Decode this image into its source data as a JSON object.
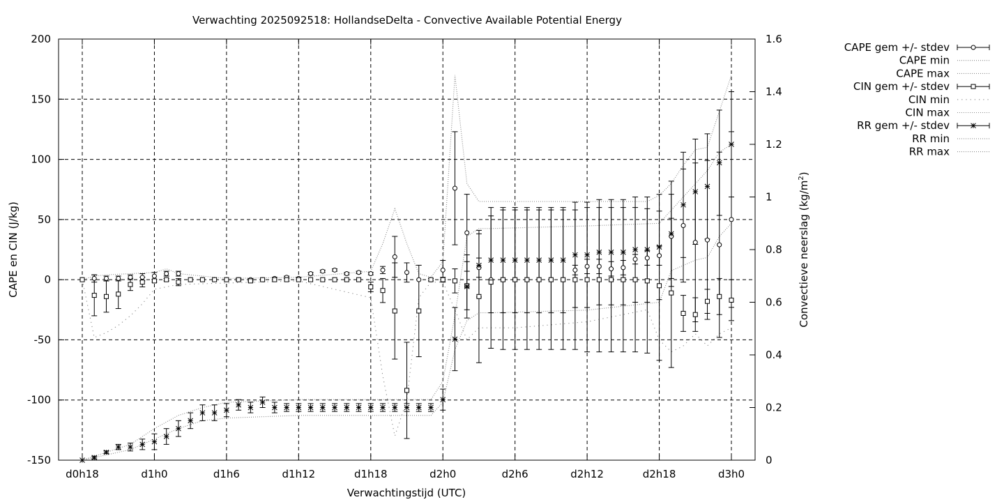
{
  "chart_data": {
    "type": "line",
    "title": "Verwachting 2025092518: HollandseDelta - Convective Available Potential Energy",
    "xlabel": "Verwachtingstijd (UTC)",
    "ylabel": "CAPE en CIN (J/kg)",
    "y2label": "Convectieve neerslag (kg/m²)",
    "y2label_main": "Convectieve neerslag (kg/m",
    "y2label_sup": "2",
    "y2label_close": ")",
    "xlim": [
      0,
      54
    ],
    "ylim": [
      -150,
      200
    ],
    "y2lim": [
      0,
      1.6
    ],
    "grid": true,
    "legend_position": "outside-right",
    "x_ticks": [
      {
        "v": 0,
        "label": "d0h18"
      },
      {
        "v": 6,
        "label": "d1h0"
      },
      {
        "v": 12,
        "label": "d1h6"
      },
      {
        "v": 18,
        "label": "d1h12"
      },
      {
        "v": 24,
        "label": "d1h18"
      },
      {
        "v": 30,
        "label": "d2h0"
      },
      {
        "v": 36,
        "label": "d2h6"
      },
      {
        "v": 42,
        "label": "d2h12"
      },
      {
        "v": 48,
        "label": "d2h18"
      },
      {
        "v": 54,
        "label": "d3h0"
      }
    ],
    "y_ticks": [
      {
        "v": -150,
        "label": "-150"
      },
      {
        "v": -100,
        "label": "-100"
      },
      {
        "v": -50,
        "label": "-50"
      },
      {
        "v": 0,
        "label": "0"
      },
      {
        "v": 50,
        "label": "50"
      },
      {
        "v": 100,
        "label": "100"
      },
      {
        "v": 150,
        "label": "150"
      },
      {
        "v": 200,
        "label": "200"
      }
    ],
    "y2_ticks": [
      {
        "v": 0,
        "label": "0"
      },
      {
        "v": 0.2,
        "label": "0.2"
      },
      {
        "v": 0.4,
        "label": "0.4"
      },
      {
        "v": 0.6,
        "label": "0.6"
      },
      {
        "v": 0.8,
        "label": "0.8"
      },
      {
        "v": 1.0,
        "label": "1"
      },
      {
        "v": 1.2,
        "label": "1.2"
      },
      {
        "v": 1.4,
        "label": "1.4"
      },
      {
        "v": 1.6,
        "label": "1.6"
      }
    ],
    "legend": [
      {
        "label": "CAPE gem +/- stdev",
        "style": "errorbar",
        "marker": "circle"
      },
      {
        "label": "CAPE min",
        "style": "dotted"
      },
      {
        "label": "CAPE max",
        "style": "dotted"
      },
      {
        "label": "CIN gem +/- stdev",
        "style": "errorbar",
        "marker": "square"
      },
      {
        "label": "CIN min",
        "style": "dotted-sparse"
      },
      {
        "label": "CIN max",
        "style": "dotted"
      },
      {
        "label": "RR gem +/- stdev",
        "style": "errorbar",
        "marker": "star"
      },
      {
        "label": "RR min",
        "style": "dotted"
      },
      {
        "label": "RR max",
        "style": "dotted"
      }
    ],
    "series": [
      {
        "key": "cape",
        "axis": "y",
        "marker": "circle",
        "errorbars": true,
        "x": [
          0,
          1,
          2,
          3,
          4,
          5,
          6,
          7,
          8,
          9,
          10,
          11,
          12,
          13,
          14,
          15,
          16,
          17,
          18,
          19,
          20,
          21,
          22,
          23,
          24,
          25,
          26,
          27,
          28,
          29,
          30,
          31,
          32,
          33,
          34,
          35,
          36,
          37,
          38,
          39,
          40,
          41,
          42,
          43,
          44,
          45,
          46,
          47,
          48,
          49,
          50,
          51,
          52,
          53,
          54
        ],
        "mean": [
          0,
          1,
          1,
          1,
          2,
          2,
          3,
          5,
          5,
          0,
          0,
          0,
          0,
          0,
          0,
          0,
          1,
          2,
          1,
          5,
          7,
          8,
          5,
          6,
          5,
          8,
          19,
          6,
          0,
          0,
          8,
          76,
          39,
          10,
          0,
          0,
          0,
          0,
          0,
          0,
          0,
          8,
          11,
          11,
          9,
          10,
          17,
          18,
          20,
          36,
          45,
          31,
          33,
          29,
          50
        ],
        "err": [
          0,
          3,
          2,
          2,
          2,
          3,
          3,
          2,
          2,
          0,
          0,
          0,
          0,
          1,
          1,
          0,
          1,
          1,
          1,
          1,
          1,
          1,
          1,
          1,
          1,
          3,
          17,
          8,
          0,
          0,
          8,
          47,
          32,
          8,
          0,
          0,
          0,
          0,
          0,
          0,
          0,
          4,
          6,
          6,
          6,
          6,
          4,
          6,
          8,
          35,
          47,
          66,
          66,
          77,
          73
        ]
      },
      {
        "key": "cin",
        "axis": "y",
        "marker": "square",
        "errorbars": true,
        "x": [
          0,
          1,
          2,
          3,
          4,
          5,
          6,
          7,
          8,
          9,
          10,
          11,
          12,
          13,
          14,
          15,
          16,
          17,
          18,
          19,
          20,
          21,
          22,
          23,
          24,
          25,
          26,
          27,
          28,
          29,
          30,
          31,
          32,
          33,
          34,
          35,
          36,
          37,
          38,
          39,
          40,
          41,
          42,
          43,
          44,
          45,
          46,
          47,
          48,
          49,
          50,
          51,
          52,
          53,
          54
        ],
        "mean": [
          0,
          -13,
          -14,
          -12,
          -4,
          -2,
          -1,
          0,
          -2,
          0,
          0,
          0,
          0,
          0,
          -1,
          0,
          0,
          0,
          0,
          0,
          0,
          0,
          0,
          0,
          -6,
          -9,
          -26,
          -92,
          -26,
          0,
          0,
          -1,
          -5,
          -14,
          -2,
          0,
          0,
          0,
          0,
          0,
          0,
          0,
          0,
          0,
          0,
          0,
          0,
          -1,
          -5,
          -11,
          -28,
          -29,
          -18,
          -14,
          -17
        ],
        "err": [
          0,
          17,
          13,
          12,
          5,
          4,
          1,
          1,
          3,
          0,
          0,
          0,
          0,
          0,
          1,
          0,
          0,
          0,
          0,
          0,
          0,
          0,
          0,
          0,
          4,
          10,
          40,
          40,
          38,
          1,
          2,
          10,
          20,
          55,
          55,
          58,
          58,
          58,
          58,
          58,
          58,
          58,
          60,
          60,
          60,
          60,
          60,
          60,
          62,
          62,
          15,
          14,
          10,
          15,
          17
        ]
      },
      {
        "key": "rr",
        "axis": "y2",
        "marker": "star",
        "errorbars": true,
        "x": [
          0,
          1,
          2,
          3,
          4,
          5,
          6,
          7,
          8,
          9,
          10,
          11,
          12,
          13,
          14,
          15,
          16,
          17,
          18,
          19,
          20,
          21,
          22,
          23,
          24,
          25,
          26,
          27,
          28,
          29,
          30,
          31,
          32,
          33,
          34,
          35,
          36,
          37,
          38,
          39,
          40,
          41,
          42,
          43,
          44,
          45,
          46,
          47,
          48,
          49,
          50,
          51,
          52,
          53,
          54
        ],
        "mean": [
          0,
          0.01,
          0.03,
          0.05,
          0.05,
          0.06,
          0.07,
          0.09,
          0.12,
          0.15,
          0.18,
          0.18,
          0.19,
          0.21,
          0.2,
          0.22,
          0.2,
          0.2,
          0.2,
          0.2,
          0.2,
          0.2,
          0.2,
          0.2,
          0.2,
          0.2,
          0.2,
          0.2,
          0.2,
          0.2,
          0.23,
          0.46,
          0.66,
          0.74,
          0.76,
          0.76,
          0.76,
          0.76,
          0.76,
          0.76,
          0.76,
          0.78,
          0.78,
          0.79,
          0.79,
          0.79,
          0.8,
          0.8,
          0.81,
          0.86,
          0.97,
          1.02,
          1.04,
          1.13,
          1.2
        ],
        "err": [
          0,
          0.005,
          0.005,
          0.01,
          0.015,
          0.02,
          0.03,
          0.03,
          0.03,
          0.03,
          0.03,
          0.03,
          0.025,
          0.02,
          0.02,
          0.02,
          0.02,
          0.015,
          0.015,
          0.015,
          0.015,
          0.015,
          0.015,
          0.015,
          0.015,
          0.015,
          0.015,
          0.015,
          0.015,
          0.015,
          0.04,
          0.12,
          0.12,
          0.12,
          0.2,
          0.2,
          0.2,
          0.2,
          0.2,
          0.2,
          0.2,
          0.2,
          0.2,
          0.2,
          0.2,
          0.2,
          0.2,
          0.2,
          0.2,
          0.2,
          0.2,
          0.2,
          0.2,
          0.2,
          0.2
        ]
      },
      {
        "key": "cape_max",
        "axis": "y",
        "style": "dotted",
        "x": [
          0,
          1,
          2,
          4,
          6,
          7,
          8,
          12,
          18,
          24,
          25,
          26,
          27,
          28,
          29,
          30,
          31,
          32,
          33,
          34,
          35,
          36,
          42,
          47,
          48,
          49,
          50,
          51,
          52,
          53,
          54
        ],
        "value": [
          0,
          3,
          4,
          5,
          6,
          9,
          5,
          1,
          2,
          7,
          30,
          59,
          30,
          5,
          2,
          15,
          170,
          80,
          65,
          65,
          65,
          65,
          65,
          65,
          70,
          80,
          95,
          108,
          110,
          140,
          170
        ]
      },
      {
        "key": "cin_min",
        "axis": "y",
        "style": "dotted-sparse",
        "x": [
          0,
          1,
          2,
          3,
          4,
          5,
          6,
          8,
          18,
          24,
          25,
          26,
          27,
          28,
          29,
          30,
          31,
          32,
          33,
          36,
          42,
          47,
          48,
          49,
          50,
          51,
          52,
          53,
          54
        ],
        "value": [
          0,
          -48,
          -44,
          -38,
          -30,
          -20,
          -8,
          -4,
          -1,
          -15,
          -80,
          -130,
          -100,
          -15,
          -2,
          -2,
          -25,
          -50,
          -40,
          -40,
          -35,
          -25,
          -50,
          -60,
          -55,
          -45,
          -55,
          -45,
          -40
        ]
      },
      {
        "key": "rr_min",
        "axis": "y2",
        "style": "dotted",
        "x": [
          0,
          2,
          4,
          6,
          8,
          10,
          12,
          18,
          24,
          29,
          30,
          31,
          32,
          33,
          34,
          42,
          48,
          49,
          50,
          51,
          52,
          53,
          54
        ],
        "value": [
          0,
          0.02,
          0.04,
          0.08,
          0.12,
          0.15,
          0.16,
          0.17,
          0.17,
          0.17,
          0.22,
          0.42,
          0.53,
          0.56,
          0.56,
          0.57,
          0.6,
          0.72,
          0.74,
          0.76,
          0.77,
          0.85,
          0.9
        ]
      },
      {
        "key": "rr_max",
        "axis": "y2",
        "style": "dotted",
        "x": [
          0,
          2,
          4,
          6,
          8,
          10,
          12,
          18,
          24,
          29,
          30,
          31,
          32,
          33,
          34,
          42,
          48,
          49,
          50,
          51,
          52,
          53,
          54
        ],
        "value": [
          0,
          0.03,
          0.06,
          0.12,
          0.17,
          0.2,
          0.22,
          0.23,
          0.23,
          0.23,
          0.3,
          0.55,
          0.85,
          0.88,
          0.88,
          0.89,
          0.9,
          0.95,
          1.0,
          1.05,
          1.1,
          1.17,
          1.2
        ]
      }
    ]
  }
}
